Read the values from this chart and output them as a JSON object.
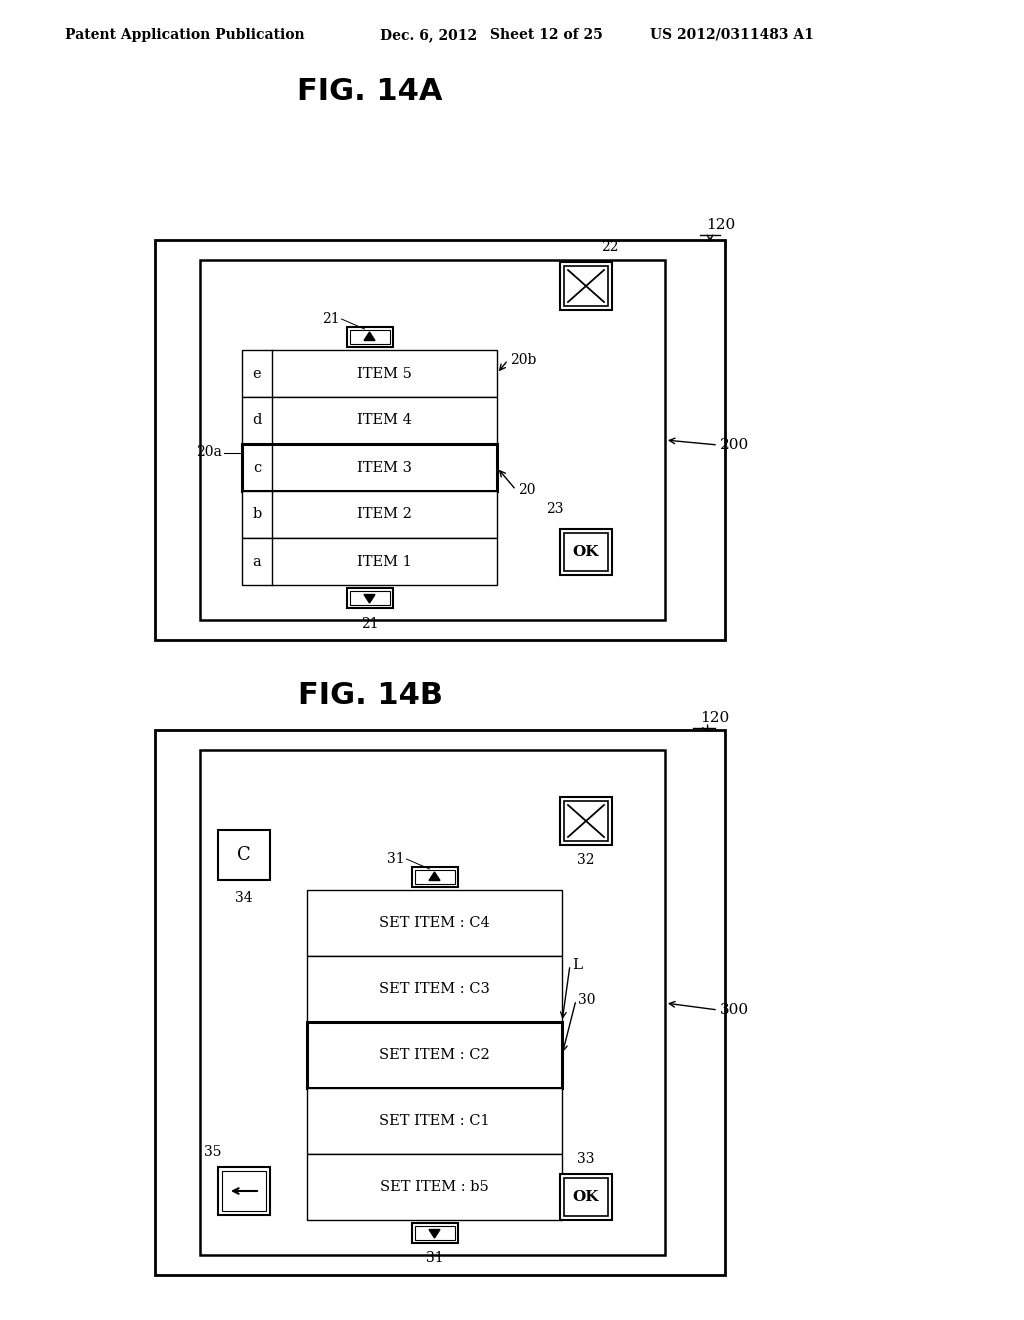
{
  "bg_color": "#ffffff",
  "header_text": "Patent Application Publication",
  "header_date": "Dec. 6, 2012",
  "header_sheet": "Sheet 12 of 25",
  "header_patent": "US 2012/0311483 A1",
  "fig_a_title": "FIG. 14A",
  "fig_b_title": "FIG. 14B",
  "figA": {
    "label_120": "120",
    "label_200": "200",
    "label_22": "22",
    "label_23": "23",
    "label_20": "20",
    "label_20a": "20a",
    "label_20b": "20b",
    "label_21_top": "21",
    "label_21_bot": "21",
    "list_items": [
      "a",
      "b",
      "c",
      "d",
      "e"
    ],
    "list_labels": [
      "ITEM 1",
      "ITEM 2",
      "ITEM 3",
      "ITEM 4",
      "ITEM 5"
    ],
    "selected_row": 2
  },
  "figB": {
    "label_120": "120",
    "label_300": "300",
    "label_31_top": "31",
    "label_31_bot": "31",
    "label_32": "32",
    "label_33": "33",
    "label_34": "34",
    "label_35": "35",
    "label_L": "L",
    "label_30": "30",
    "list_labels": [
      "SET ITEM : b5",
      "SET ITEM : C1",
      "SET ITEM : C2",
      "SET ITEM : C3",
      "SET ITEM : C4"
    ],
    "selected_row": 2
  }
}
